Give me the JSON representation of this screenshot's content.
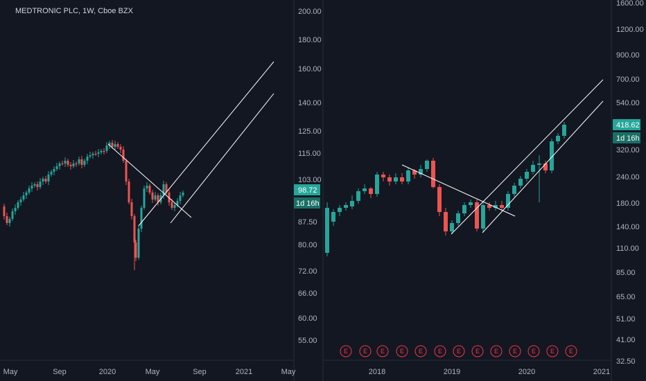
{
  "chart_data": [
    {
      "type": "candlestick",
      "title": "MEDTRONIC PLC, 1W, Cboe BZX",
      "y_scale": "log",
      "y_tick_labels": [
        "200.00",
        "180.00",
        "160.00",
        "140.00",
        "125.00",
        "115.00",
        "103.00",
        "87.50",
        "80.00",
        "72.00",
        "66.00",
        "60.00",
        "55.00"
      ],
      "x_tick_labels": [
        "May",
        "Sep",
        "2020",
        "May",
        "Sep",
        "2021",
        "May"
      ],
      "last_price": "98.72",
      "countdown": "1d 16h",
      "colors": {
        "up": "#26a69a",
        "down": "#ef5350",
        "badge": "#26a69a",
        "trendline": "#ffffff"
      }
    },
    {
      "type": "candlestick",
      "y_scale": "log",
      "y_tick_labels": [
        "1600.00",
        "1200.00",
        "900.00",
        "700.00",
        "540.00",
        "320.00",
        "240.00",
        "180.00",
        "140.00",
        "110.00",
        "85.00",
        "65.00",
        "51.00",
        "41.00",
        "32.50"
      ],
      "x_tick_labels": [
        "2018",
        "2019",
        "2020",
        "2021"
      ],
      "last_price": "418.62",
      "countdown": "1d 16h",
      "earnings_marker": "E",
      "earnings_count": 12,
      "colors": {
        "up": "#26a69a",
        "down": "#ef5350",
        "badge": "#26a69a",
        "earnings": "#f23645"
      }
    }
  ]
}
